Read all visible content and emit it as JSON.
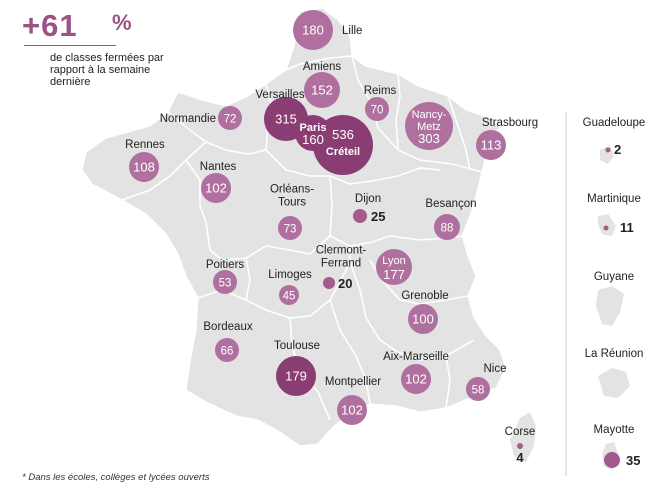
{
  "headline": {
    "value": "+61",
    "unit": "%",
    "description": "de classes fermées par rapport à la semaine dernière"
  },
  "footnote": "* Dans les écoles, collèges et lycées ouverts",
  "colors": {
    "bubble_large": "#b0709f",
    "bubble_dark": "#8a3d73",
    "bubble_small": "#a45a8c",
    "land": "#e3e3e3",
    "border": "#ffffff",
    "text": "#222222",
    "accent": "#9b5284"
  },
  "academies": [
    {
      "name": "Lille",
      "value": 180
    },
    {
      "name": "Amiens",
      "value": 152
    },
    {
      "name": "Reims",
      "value": 70
    },
    {
      "name": "Versailles",
      "value": 315
    },
    {
      "name": "Paris",
      "value": 160
    },
    {
      "name": "Créteil",
      "value": 536
    },
    {
      "name": "Nancy-Metz",
      "value": 303
    },
    {
      "name": "Strasbourg",
      "value": 113
    },
    {
      "name": "Normandie",
      "value": 72
    },
    {
      "name": "Rennes",
      "value": 108
    },
    {
      "name": "Nantes",
      "value": 102
    },
    {
      "name": "Orléans-Tours",
      "value": 73
    },
    {
      "name": "Dijon",
      "value": 25
    },
    {
      "name": "Besançon",
      "value": 88
    },
    {
      "name": "Clermont-Ferrand",
      "value": 20
    },
    {
      "name": "Lyon",
      "value": 177
    },
    {
      "name": "Poitiers",
      "value": 53
    },
    {
      "name": "Limoges",
      "value": 45
    },
    {
      "name": "Grenoble",
      "value": 100
    },
    {
      "name": "Bordeaux",
      "value": 66
    },
    {
      "name": "Toulouse",
      "value": 179
    },
    {
      "name": "Aix-Marseille",
      "value": 102
    },
    {
      "name": "Montpellier",
      "value": 102
    },
    {
      "name": "Nice",
      "value": 58
    },
    {
      "name": "Corse",
      "value": 4
    }
  ],
  "overseas": [
    {
      "name": "Guadeloupe",
      "value": 2
    },
    {
      "name": "Martinique",
      "value": 11
    },
    {
      "name": "Guyane",
      "value": null
    },
    {
      "name": "La Réunion",
      "value": null
    },
    {
      "name": "Mayotte",
      "value": 35
    }
  ]
}
